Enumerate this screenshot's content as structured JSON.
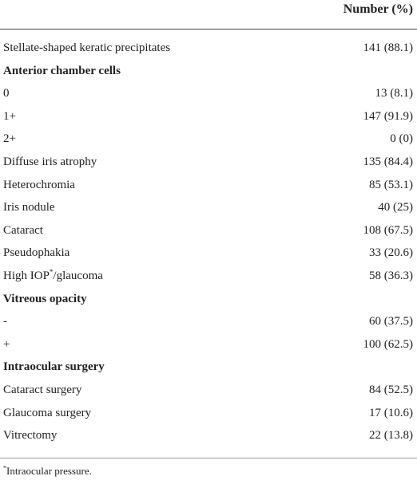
{
  "table": {
    "header": {
      "col_label": "",
      "col_value": "Number (%)"
    },
    "rows": [
      {
        "label": "Stellate-shaped keratic precipitates",
        "value": "141 (88.1)"
      },
      {
        "label": "Anterior chamber cells",
        "value": ""
      },
      {
        "label": "0",
        "value": "13 (8.1)"
      },
      {
        "label": "1+",
        "value": "147 (91.9)"
      },
      {
        "label": "2+",
        "value": "0 (0)"
      },
      {
        "label": "Diffuse iris atrophy",
        "value": "135 (84.4)"
      },
      {
        "label": "Heterochromia",
        "value": "85 (53.1)"
      },
      {
        "label": "Iris nodule",
        "value": "40 (25)"
      },
      {
        "label": "Cataract",
        "value": "108 (67.5)"
      },
      {
        "label": "Pseudophakia",
        "value": "33 (20.6)"
      },
      {
        "label_main": "High IOP",
        "label_sup": "*",
        "label_tail": "/glaucoma",
        "value": "58 (36.3)"
      },
      {
        "label": "Vitreous opacity",
        "value": ""
      },
      {
        "label": "-",
        "value": "60 (37.5)"
      },
      {
        "label": "+",
        "value": "100 (62.5)"
      },
      {
        "label": "Intraocular surgery",
        "value": ""
      },
      {
        "label": "Cataract surgery",
        "value": "84 (52.5)"
      },
      {
        "label": "Glaucoma surgery",
        "value": "17 (10.6)"
      },
      {
        "label": "Vitrectomy",
        "value": "22 (13.8)"
      }
    ]
  },
  "footnote": {
    "mark": "*",
    "text": "Intraocular pressure."
  }
}
